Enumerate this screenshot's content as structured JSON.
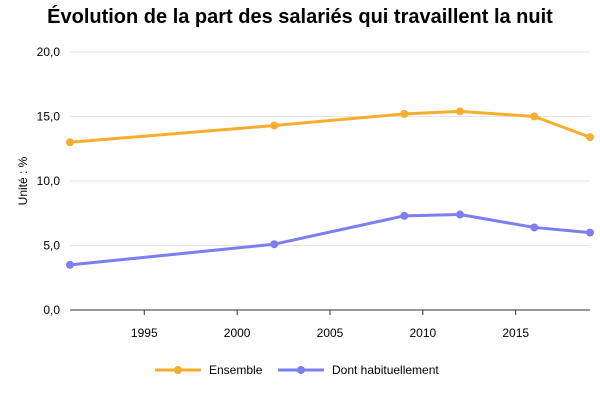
{
  "chart_data": {
    "type": "line",
    "title": "Évolution de la part des salariés qui travaillent la nuit",
    "ylabel": "Unité : %",
    "xlabel": "",
    "xlim": [
      1991,
      2019
    ],
    "ylim": [
      0,
      20
    ],
    "x_ticks": [
      1995,
      2000,
      2005,
      2010,
      2015
    ],
    "y_ticks": [
      0,
      5,
      10,
      15,
      20
    ],
    "y_tick_labels": [
      "0,0",
      "5,0",
      "10,0",
      "15,0",
      "20,0"
    ],
    "grid": true,
    "legend_position": "bottom",
    "series": [
      {
        "name": "Ensemble",
        "color": "#F5AE2E",
        "x": [
          1991,
          2002,
          2009,
          2012,
          2016,
          2019
        ],
        "values": [
          13.0,
          14.3,
          15.2,
          15.4,
          15.0,
          13.4
        ]
      },
      {
        "name": "Dont habituellement",
        "color": "#7B7FF0",
        "x": [
          1991,
          2002,
          2009,
          2012,
          2016,
          2019
        ],
        "values": [
          3.5,
          5.1,
          7.3,
          7.4,
          6.4,
          6.0
        ]
      }
    ]
  }
}
